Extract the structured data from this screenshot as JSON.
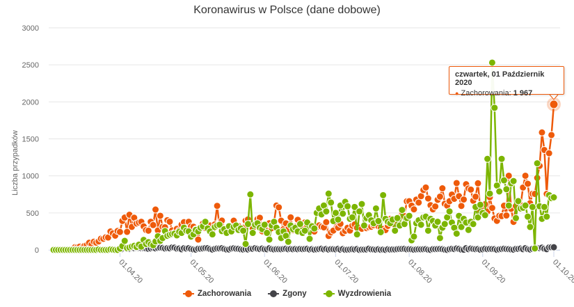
{
  "chart_data": {
    "type": "line",
    "title": "Koronawirus w Polsce (dane dobowe)",
    "xlabel": "",
    "ylabel": "Liczba przypadków",
    "ylim": [
      0,
      3000
    ],
    "yticks": [
      0,
      500,
      1000,
      1500,
      2000,
      2500,
      3000
    ],
    "xlim": [
      "2020-03-04",
      "2020-10-01"
    ],
    "xtick_labels": [
      "01.04.20",
      "01.05.20",
      "01.06.20",
      "01.07.20",
      "01.08.20",
      "01.09.20",
      "01.10.20"
    ],
    "xtick_dates": [
      "2020-04-01",
      "2020-05-01",
      "2020-06-01",
      "2020-07-01",
      "2020-08-01",
      "2020-09-01",
      "2020-10-01"
    ],
    "grid": "horizontal",
    "legend_placement": "bottom-center",
    "x": [
      "2020-03-04",
      "2020-03-05",
      "2020-03-06",
      "2020-03-07",
      "2020-03-08",
      "2020-03-09",
      "2020-03-10",
      "2020-03-11",
      "2020-03-12",
      "2020-03-13",
      "2020-03-14",
      "2020-03-15",
      "2020-03-16",
      "2020-03-17",
      "2020-03-18",
      "2020-03-19",
      "2020-03-20",
      "2020-03-21",
      "2020-03-22",
      "2020-03-23",
      "2020-03-24",
      "2020-03-25",
      "2020-03-26",
      "2020-03-27",
      "2020-03-28",
      "2020-03-29",
      "2020-03-30",
      "2020-03-31",
      "2020-04-01",
      "2020-04-02",
      "2020-04-03",
      "2020-04-04",
      "2020-04-05",
      "2020-04-06",
      "2020-04-07",
      "2020-04-08",
      "2020-04-09",
      "2020-04-10",
      "2020-04-11",
      "2020-04-12",
      "2020-04-13",
      "2020-04-14",
      "2020-04-15",
      "2020-04-16",
      "2020-04-17",
      "2020-04-18",
      "2020-04-19",
      "2020-04-20",
      "2020-04-21",
      "2020-04-22",
      "2020-04-23",
      "2020-04-24",
      "2020-04-25",
      "2020-04-26",
      "2020-04-27",
      "2020-04-28",
      "2020-04-29",
      "2020-04-30",
      "2020-05-01",
      "2020-05-02",
      "2020-05-03",
      "2020-05-04",
      "2020-05-05",
      "2020-05-06",
      "2020-05-07",
      "2020-05-08",
      "2020-05-09",
      "2020-05-10",
      "2020-05-11",
      "2020-05-12",
      "2020-05-13",
      "2020-05-14",
      "2020-05-15",
      "2020-05-16",
      "2020-05-17",
      "2020-05-18",
      "2020-05-19",
      "2020-05-20",
      "2020-05-21",
      "2020-05-22",
      "2020-05-23",
      "2020-05-24",
      "2020-05-25",
      "2020-05-26",
      "2020-05-27",
      "2020-05-28",
      "2020-05-29",
      "2020-05-30",
      "2020-05-31",
      "2020-06-01",
      "2020-06-02",
      "2020-06-03",
      "2020-06-04",
      "2020-06-05",
      "2020-06-06",
      "2020-06-07",
      "2020-06-08",
      "2020-06-09",
      "2020-06-10",
      "2020-06-11",
      "2020-06-12",
      "2020-06-13",
      "2020-06-14",
      "2020-06-15",
      "2020-06-16",
      "2020-06-17",
      "2020-06-18",
      "2020-06-19",
      "2020-06-20",
      "2020-06-21",
      "2020-06-22",
      "2020-06-23",
      "2020-06-24",
      "2020-06-25",
      "2020-06-26",
      "2020-06-27",
      "2020-06-28",
      "2020-06-29",
      "2020-06-30",
      "2020-07-01",
      "2020-07-02",
      "2020-07-03",
      "2020-07-04",
      "2020-07-05",
      "2020-07-06",
      "2020-07-07",
      "2020-07-08",
      "2020-07-09",
      "2020-07-10",
      "2020-07-11",
      "2020-07-12",
      "2020-07-13",
      "2020-07-14",
      "2020-07-15",
      "2020-07-16",
      "2020-07-17",
      "2020-07-18",
      "2020-07-19",
      "2020-07-20",
      "2020-07-21",
      "2020-07-22",
      "2020-07-23",
      "2020-07-24",
      "2020-07-25",
      "2020-07-26",
      "2020-07-27",
      "2020-07-28",
      "2020-07-29",
      "2020-07-30",
      "2020-07-31",
      "2020-08-01",
      "2020-08-02",
      "2020-08-03",
      "2020-08-04",
      "2020-08-05",
      "2020-08-06",
      "2020-08-07",
      "2020-08-08",
      "2020-08-09",
      "2020-08-10",
      "2020-08-11",
      "2020-08-12",
      "2020-08-13",
      "2020-08-14",
      "2020-08-15",
      "2020-08-16",
      "2020-08-17",
      "2020-08-18",
      "2020-08-19",
      "2020-08-20",
      "2020-08-21",
      "2020-08-22",
      "2020-08-23",
      "2020-08-24",
      "2020-08-25",
      "2020-08-26",
      "2020-08-27",
      "2020-08-28",
      "2020-08-29",
      "2020-08-30",
      "2020-08-31",
      "2020-09-01",
      "2020-09-02",
      "2020-09-03",
      "2020-09-04",
      "2020-09-05",
      "2020-09-06",
      "2020-09-07",
      "2020-09-08",
      "2020-09-09",
      "2020-09-10",
      "2020-09-11",
      "2020-09-12",
      "2020-09-13",
      "2020-09-14",
      "2020-09-15",
      "2020-09-16",
      "2020-09-17",
      "2020-09-18",
      "2020-09-19",
      "2020-09-20",
      "2020-09-21",
      "2020-09-22",
      "2020-09-23",
      "2020-09-24",
      "2020-09-25",
      "2020-09-26",
      "2020-09-27",
      "2020-09-28",
      "2020-09-29",
      "2020-09-30",
      "2020-10-01"
    ],
    "series": [
      {
        "name": "Zachorowania",
        "color": "#ee5a0a",
        "values": [
          1,
          0,
          4,
          1,
          5,
          6,
          6,
          9,
          17,
          36,
          36,
          44,
          27,
          54,
          65,
          96,
          70,
          111,
          98,
          115,
          152,
          150,
          170,
          168,
          249,
          224,
          193,
          256,
          243,
          392,
          437,
          244,
          475,
          311,
          435,
          357,
          370,
          380,
          318,
          268,
          260,
          380,
          336,
          545,
          263,
          461,
          312,
          306,
          401,
          381,
          264,
          230,
          285,
          263,
          342,
          375,
          251,
          380,
          318,
          313,
          279,
          140,
          307,
          356,
          295,
          307,
          330,
          273,
          345,
          595,
          316,
          396,
          285,
          226,
          322,
          310,
          395,
          306,
          323,
          276,
          300,
          395,
          412,
          353,
          292,
          343,
          416,
          434,
          252,
          292,
          230,
          361,
          294,
          376,
          599,
          575,
          395,
          282,
          359,
          282,
          440,
          266,
          314,
          407,
          305,
          300,
          371,
          329,
          340,
          318,
          249,
          307,
          331,
          314,
          305,
          375,
          189,
          236,
          261,
          371,
          300,
          353,
          226,
          258,
          299,
          262,
          327,
          344,
          299,
          299,
          286,
          332,
          294,
          307,
          313,
          334,
          358,
          319,
          295,
          283,
          268,
          325,
          418,
          350,
          337,
          384,
          445,
          512,
          456,
          657,
          658,
          598,
          548,
          680,
          640,
          726,
          809,
          843,
          695,
          604,
          548,
          587,
          677,
          720,
          832,
          624,
          599,
          658,
          748,
          690,
          903,
          726,
          594,
          681,
          887,
          830,
          815,
          665,
          719,
          900,
          532,
          597,
          617,
          519,
          712,
          567,
          425,
          393,
          461,
          457,
          597,
          465,
          1002,
          555,
          379,
          592,
          600,
          606,
          843,
          1002,
          894,
          631,
          758,
          757,
          973,
          1136,
          1587,
          1350,
          757,
          1306,
          1552,
          1967
        ]
      },
      {
        "name": "Zgony",
        "color": "#434348",
        "values": [
          0,
          0,
          0,
          0,
          0,
          0,
          0,
          0,
          1,
          1,
          1,
          0,
          1,
          0,
          2,
          2,
          0,
          3,
          3,
          1,
          2,
          2,
          4,
          4,
          5,
          6,
          10,
          8,
          12,
          12,
          22,
          14,
          15,
          25,
          24,
          28,
          26,
          24,
          24,
          20,
          15,
          20,
          27,
          21,
          28,
          30,
          27,
          19,
          24,
          22,
          33,
          31,
          18,
          19,
          9,
          23,
          18,
          24,
          13,
          7,
          4,
          16,
          16,
          20,
          25,
          23,
          12,
          5,
          14,
          20,
          20,
          23,
          13,
          5,
          6,
          18,
          22,
          17,
          15,
          8,
          5,
          10,
          6,
          16,
          15,
          24,
          17,
          12,
          19,
          10,
          9,
          22,
          12,
          7,
          10,
          10,
          9,
          13,
          17,
          9,
          13,
          9,
          13,
          9,
          13,
          11,
          13,
          15,
          6,
          11,
          4,
          8,
          12,
          17,
          8,
          13,
          5,
          11,
          10,
          8,
          14,
          4,
          12,
          2,
          3,
          6,
          10,
          7,
          12,
          1,
          5,
          5,
          7,
          17,
          8,
          6,
          3,
          9,
          2,
          5,
          1,
          9,
          5,
          7,
          6,
          10,
          13,
          14,
          15,
          8,
          10,
          8,
          3,
          7,
          9,
          8,
          9,
          11,
          4,
          1,
          10,
          11,
          12,
          13,
          10,
          4,
          1,
          10,
          15,
          12,
          20,
          14,
          4,
          3,
          24,
          10,
          19,
          13,
          10,
          12,
          3,
          8,
          15,
          10,
          13,
          12,
          11,
          2,
          8,
          12,
          16,
          12,
          10,
          6,
          4,
          14,
          14,
          19,
          10,
          24,
          11,
          6,
          15,
          17,
          26,
          25,
          31,
          17,
          10,
          34,
          36,
          36
        ]
      },
      {
        "name": "Wyzdrowienia",
        "color": "#7cb500",
        "values": [
          0,
          0,
          0,
          0,
          0,
          0,
          0,
          0,
          0,
          0,
          0,
          0,
          1,
          0,
          0,
          0,
          0,
          0,
          0,
          6,
          0,
          0,
          0,
          1,
          7,
          3,
          0,
          0,
          18,
          52,
          122,
          25,
          33,
          46,
          55,
          40,
          71,
          45,
          135,
          80,
          105,
          75,
          63,
          115,
          185,
          123,
          160,
          255,
          190,
          205,
          215,
          220,
          197,
          245,
          230,
          300,
          260,
          250,
          180,
          210,
          270,
          250,
          300,
          320,
          380,
          290,
          250,
          210,
          310,
          330,
          340,
          255,
          280,
          230,
          320,
          250,
          310,
          330,
          270,
          290,
          260,
          80,
          350,
          750,
          230,
          340,
          360,
          300,
          280,
          340,
          230,
          140,
          330,
          380,
          300,
          240,
          160,
          250,
          190,
          110,
          330,
          280,
          300,
          250,
          350,
          230,
          260,
          370,
          150,
          320,
          290,
          500,
          560,
          480,
          600,
          520,
          760,
          640,
          390,
          500,
          410,
          600,
          490,
          650,
          590,
          420,
          440,
          580,
          210,
          520,
          620,
          330,
          430,
          470,
          400,
          360,
          560,
          390,
          240,
          740,
          420,
          380,
          360,
          410,
          260,
          430,
          330,
          540,
          350,
          430,
          460,
          130,
          180,
          360,
          400,
          340,
          440,
          450,
          260,
          420,
          390,
          330,
          380,
          160,
          300,
          350,
          440,
          520,
          370,
          300,
          220,
          460,
          310,
          420,
          370,
          270,
          380,
          350,
          580,
          440,
          610,
          500,
          470,
          1230,
          760,
          2530,
          1920,
          870,
          790,
          1230,
          940,
          820,
          600,
          900,
          930,
          430,
          660,
          560,
          570,
          600,
          450,
          310,
          580,
          20,
          1170,
          590,
          420,
          580,
          450,
          740,
          700,
          710
        ]
      }
    ],
    "tooltip": {
      "header": "czwartek, 01 Październik 2020",
      "series_label": "Zachorowania: ",
      "value_text": "1 967",
      "date": "2020-10-01"
    }
  }
}
